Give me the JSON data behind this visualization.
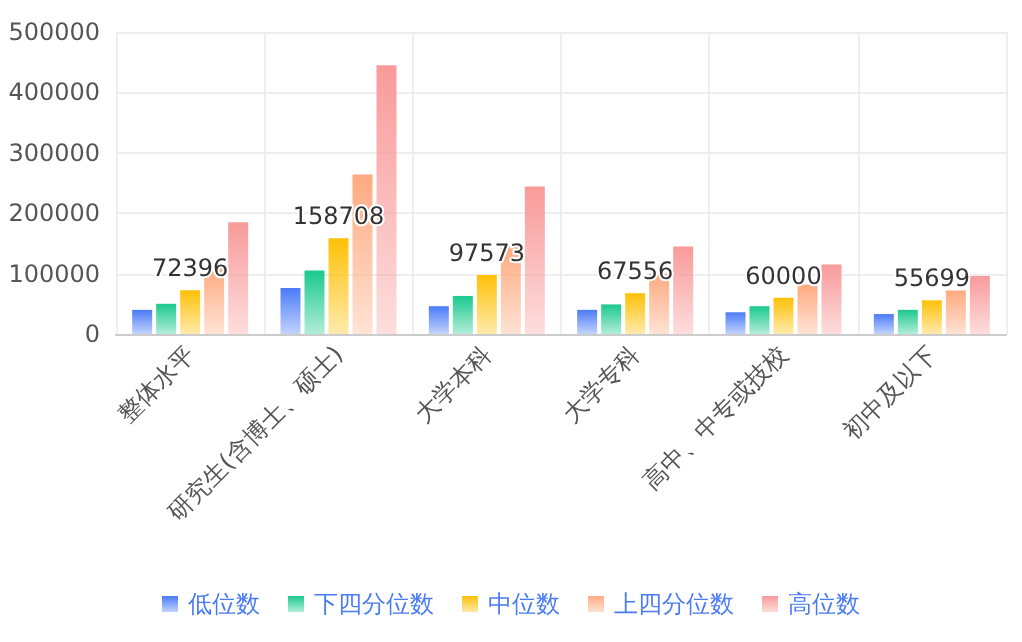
{
  "chart_data": {
    "type": "bar",
    "categories": [
      "整体水平",
      "研究生(含博士、硕士)",
      "大学本科",
      "大学专科",
      "高中、中专或技校",
      "初中及以下"
    ],
    "series": [
      {
        "name": "低位数",
        "color": "#4a7bf7",
        "values": [
          40000,
          76000,
          46000,
          40000,
          36000,
          33000
        ]
      },
      {
        "name": "下四分位数",
        "color": "#1bc98e",
        "values": [
          50000,
          105000,
          63000,
          49000,
          46000,
          40000
        ]
      },
      {
        "name": "中位数",
        "color": "#ffc107",
        "values": [
          72396,
          158708,
          97573,
          67556,
          60000,
          55699
        ],
        "value_labels": [
          "72396",
          "158708",
          "97573",
          "67556",
          "60000",
          "55699"
        ]
      },
      {
        "name": "上四分位数",
        "color": "#ffaa80",
        "values": [
          112000,
          264000,
          145000,
          100000,
          82000,
          72000
        ]
      },
      {
        "name": "高位数",
        "color": "#f99a9a",
        "values": [
          185000,
          445000,
          244000,
          145000,
          115000,
          96000
        ]
      }
    ],
    "ylim": [
      0,
      500000
    ],
    "yticks": [
      0,
      100000,
      200000,
      300000,
      400000,
      500000
    ],
    "grid": true,
    "legend": "bottom"
  }
}
